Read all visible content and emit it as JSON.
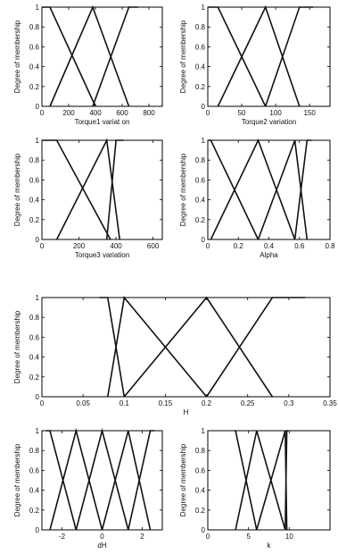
{
  "chart_data": [
    {
      "type": "line",
      "xlabel": "Torque1 variat on",
      "ylabel": "Degree of membership",
      "xlim": [
        0,
        900
      ],
      "ylim": [
        0,
        1
      ],
      "xticks": [
        0,
        200,
        400,
        600,
        800
      ],
      "yticks": [
        0,
        0.2,
        0.4,
        0.6,
        0.8,
        1
      ],
      "series": [
        {
          "x": [
            0,
            60,
            400
          ],
          "y": [
            1,
            1,
            0
          ]
        },
        {
          "x": [
            60,
            380,
            650
          ],
          "y": [
            0,
            1,
            0
          ]
        },
        {
          "x": [
            380,
            650,
            720
          ],
          "y": [
            0,
            1,
            1
          ]
        }
      ]
    },
    {
      "type": "line",
      "xlabel": "Torque2 variation",
      "ylabel": "Degree of membership",
      "xlim": [
        0,
        180
      ],
      "ylim": [
        0,
        1
      ],
      "xticks": [
        0,
        50,
        100,
        150
      ],
      "yticks": [
        0,
        0.2,
        0.4,
        0.6,
        0.8,
        1
      ],
      "series": [
        {
          "x": [
            0,
            15,
            85
          ],
          "y": [
            1,
            1,
            0
          ]
        },
        {
          "x": [
            15,
            85,
            135
          ],
          "y": [
            0,
            1,
            0
          ]
        },
        {
          "x": [
            85,
            135,
            155
          ],
          "y": [
            0,
            1,
            1
          ]
        }
      ]
    },
    {
      "type": "line",
      "xlabel": "Torque3 variation",
      "ylabel": "Degree of membership",
      "xlim": [
        0,
        650
      ],
      "ylim": [
        0,
        1
      ],
      "xticks": [
        0,
        200,
        400,
        600
      ],
      "yticks": [
        0,
        0.2,
        0.4,
        0.6,
        0.8,
        1
      ],
      "series": [
        {
          "x": [
            0,
            80,
            370
          ],
          "y": [
            1,
            1,
            0
          ]
        },
        {
          "x": [
            80,
            350,
            420
          ],
          "y": [
            0,
            1,
            0
          ]
        },
        {
          "x": [
            350,
            400,
            440
          ],
          "y": [
            0,
            1,
            1
          ]
        }
      ]
    },
    {
      "type": "line",
      "xlabel": "Alpha",
      "ylabel": "Degree of membership",
      "xlim": [
        0,
        0.8
      ],
      "ylim": [
        0,
        1
      ],
      "xticks": [
        0,
        0.2,
        0.4,
        0.6,
        0.8
      ],
      "xticklabels": [
        "0",
        "0.2",
        "0.4",
        "0.6",
        "0.8"
      ],
      "yticks": [
        0,
        0.2,
        0.4,
        0.6,
        0.8,
        1
      ],
      "series": [
        {
          "x": [
            0,
            0.02,
            0.33
          ],
          "y": [
            1,
            1,
            0
          ]
        },
        {
          "x": [
            0.02,
            0.33,
            0.57
          ],
          "y": [
            0,
            1,
            0
          ]
        },
        {
          "x": [
            0.33,
            0.57,
            0.65
          ],
          "y": [
            0,
            1,
            0
          ]
        },
        {
          "x": [
            0.57,
            0.65,
            0.68
          ],
          "y": [
            0,
            1,
            1
          ]
        }
      ]
    },
    {
      "type": "line",
      "xlabel": "H",
      "ylabel": "Degree of membership",
      "xlim": [
        0,
        0.35
      ],
      "ylim": [
        0,
        1
      ],
      "xticks": [
        0,
        0.05,
        0.1,
        0.15,
        0.2,
        0.25,
        0.3,
        0.35
      ],
      "xticklabels": [
        "0",
        "0.05",
        "0.1",
        "0.15",
        "0.2",
        "0.25",
        "0.3",
        "0.35"
      ],
      "yticks": [
        0,
        0.2,
        0.4,
        0.6,
        0.8,
        1
      ],
      "series": [
        {
          "x": [
            0.07,
            0.08,
            0.1
          ],
          "y": [
            1,
            1,
            0
          ]
        },
        {
          "x": [
            0.08,
            0.1,
            0.2
          ],
          "y": [
            0,
            1,
            0
          ]
        },
        {
          "x": [
            0.1,
            0.2,
            0.28
          ],
          "y": [
            0,
            1,
            0
          ]
        },
        {
          "x": [
            0.2,
            0.28,
            0.32
          ],
          "y": [
            0,
            1,
            1
          ]
        }
      ]
    },
    {
      "type": "line",
      "xlabel": "dH",
      "ylabel": "Degree of membership",
      "xlim": [
        -3,
        3
      ],
      "ylim": [
        0,
        1
      ],
      "xticks": [
        -2,
        0,
        2
      ],
      "yticks": [
        0,
        0.2,
        0.4,
        0.6,
        0.8,
        1
      ],
      "series": [
        {
          "x": [
            -2.8,
            -2.6,
            -1.3
          ],
          "y": [
            1,
            1,
            0
          ]
        },
        {
          "x": [
            -2.6,
            -1.3,
            0
          ],
          "y": [
            0,
            1,
            0
          ]
        },
        {
          "x": [
            -1.3,
            0,
            1.3
          ],
          "y": [
            0,
            1,
            0
          ]
        },
        {
          "x": [
            0,
            1.3,
            2.4
          ],
          "y": [
            0,
            1,
            0
          ]
        },
        {
          "x": [
            1.3,
            2.4,
            2.6
          ],
          "y": [
            0,
            1,
            1
          ]
        }
      ]
    },
    {
      "type": "line",
      "xlabel": "k",
      "ylabel": "Degree of membership",
      "xlim": [
        0,
        15
      ],
      "ylim": [
        0,
        1
      ],
      "xticks": [
        0,
        5,
        10
      ],
      "yticks": [
        0,
        0.2,
        0.4,
        0.6,
        0.8,
        1
      ],
      "series": [
        {
          "x": [
            3.3,
            3.4,
            6
          ],
          "y": [
            1,
            1,
            0
          ]
        },
        {
          "x": [
            3.4,
            6,
            9.5
          ],
          "y": [
            0,
            1,
            0
          ]
        },
        {
          "x": [
            6,
            9.5,
            9.7
          ],
          "y": [
            0,
            1,
            0
          ]
        },
        {
          "x": [
            9.5,
            9.7,
            9.9
          ],
          "y": [
            0,
            1,
            1
          ]
        }
      ]
    }
  ]
}
